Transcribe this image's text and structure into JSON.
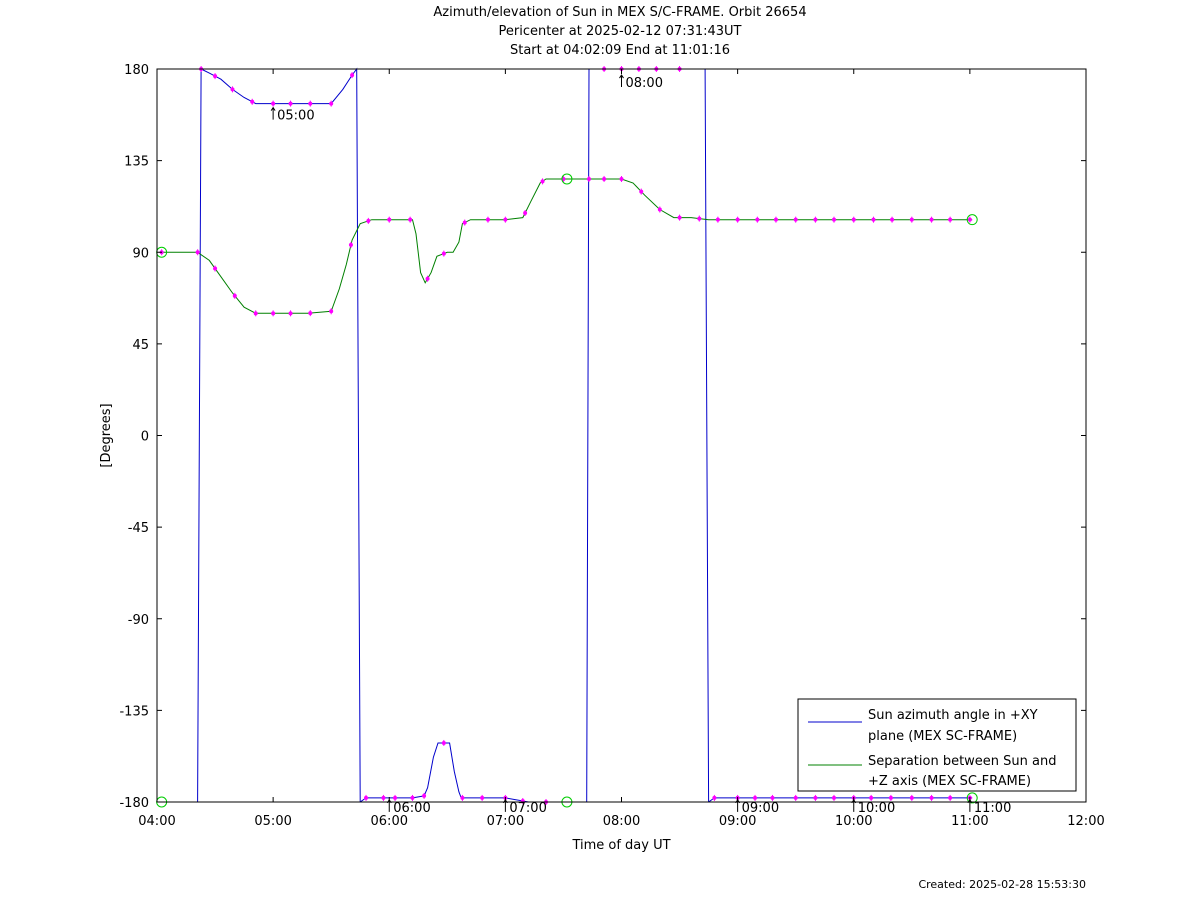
{
  "chart_data": {
    "type": "line",
    "title": "Azimuth/elevation of Sun in MEX S/C-FRAME.  Orbit 26654",
    "subtitle_lines": [
      "Pericenter at 2025-02-12 07:31:43UT",
      "Start at 04:02:09 End at 11:01:16"
    ],
    "xlabel": "Time of day UT",
    "ylabel": "[Degrees]",
    "xlim_hours": [
      4,
      12
    ],
    "ylim": [
      -180,
      180
    ],
    "x_ticks": [
      "04:00",
      "05:00",
      "06:00",
      "07:00",
      "08:00",
      "09:00",
      "10:00",
      "11:00",
      "12:00"
    ],
    "y_ticks": [
      "180",
      "135",
      "90",
      "45",
      "0",
      "-45",
      "-90",
      "-135",
      "-180"
    ],
    "grid": false,
    "legend_position": "bottom-right",
    "colors": {
      "azimuth": "#0000cc",
      "separation": "#008000",
      "marker": "#ff00ff",
      "circle": "#00cc00"
    },
    "annotations": [
      {
        "label": "05:00",
        "x": 5.0,
        "y": 163
      },
      {
        "label": "06:00",
        "x": 6.0,
        "y": -177
      },
      {
        "label": "07:00",
        "x": 7.0,
        "y": -177
      },
      {
        "label": "08:00",
        "x": 8.0,
        "y": 179
      },
      {
        "label": "09:00",
        "x": 9.0,
        "y": -177
      },
      {
        "label": "10:00",
        "x": 10.0,
        "y": -177
      },
      {
        "label": "11:00",
        "x": 11.0,
        "y": -177
      }
    ],
    "series": [
      {
        "name": "Sun azimuth angle in +XY plane (MEX SC-FRAME)",
        "segments": [
          [
            [
              4.04,
              -180
            ],
            [
              4.35,
              -180
            ],
            [
              4.38,
              180
            ]
          ],
          [
            [
              4.38,
              180
            ],
            [
              4.45,
              178
            ],
            [
              4.55,
              175
            ],
            [
              4.65,
              170
            ],
            [
              4.75,
              166
            ],
            [
              4.85,
              163
            ],
            [
              5.0,
              163
            ],
            [
              5.3,
              163
            ],
            [
              5.5,
              163
            ],
            [
              5.6,
              170
            ],
            [
              5.68,
              177
            ],
            [
              5.72,
              180
            ],
            [
              5.75,
              -180
            ]
          ],
          [
            [
              5.75,
              -180
            ],
            [
              5.8,
              -178
            ],
            [
              5.9,
              -178
            ],
            [
              6.0,
              -178
            ],
            [
              6.1,
              -178
            ],
            [
              6.2,
              -178
            ],
            [
              6.3,
              -177
            ],
            [
              6.33,
              -173
            ],
            [
              6.38,
              -158
            ],
            [
              6.42,
              -151
            ],
            [
              6.52,
              -151
            ],
            [
              6.56,
              -165
            ],
            [
              6.6,
              -175
            ],
            [
              6.62,
              -178
            ],
            [
              6.7,
              -178
            ],
            [
              6.85,
              -178
            ],
            [
              7.0,
              -178
            ],
            [
              7.2,
              -180
            ],
            [
              7.5,
              -180
            ],
            [
              7.7,
              -180
            ],
            [
              7.72,
              180
            ]
          ],
          [
            [
              7.72,
              180
            ],
            [
              7.85,
              180
            ],
            [
              8.0,
              180
            ],
            [
              8.15,
              180
            ],
            [
              8.3,
              180
            ],
            [
              8.5,
              180
            ],
            [
              8.72,
              180
            ],
            [
              8.75,
              -180
            ]
          ],
          [
            [
              8.75,
              -180
            ],
            [
              8.8,
              -178
            ],
            [
              9.0,
              -178
            ],
            [
              9.5,
              -178
            ],
            [
              10.0,
              -178
            ],
            [
              10.5,
              -178
            ],
            [
              11.02,
              -178
            ]
          ]
        ],
        "markers": [
          4.38,
          4.5,
          4.65,
          4.82,
          5.0,
          5.15,
          5.32,
          5.5,
          5.68,
          5.8,
          5.95,
          6.05,
          6.2,
          6.3,
          6.47,
          6.63,
          6.8,
          7.0,
          7.15,
          7.35,
          7.85,
          8.0,
          8.15,
          8.3,
          8.5,
          8.8,
          9.0,
          9.15,
          9.3,
          9.5,
          9.67,
          9.83,
          10.0,
          10.15,
          10.32,
          10.5,
          10.67,
          10.83,
          11.0
        ]
      },
      {
        "name": "Separation between Sun and +Z axis (MEX SC-FRAME)",
        "segments": [
          [
            [
              4.04,
              90
            ],
            [
              4.35,
              90
            ],
            [
              4.45,
              86
            ],
            [
              4.55,
              78
            ],
            [
              4.65,
              70
            ],
            [
              4.75,
              63
            ],
            [
              4.85,
              60
            ],
            [
              5.0,
              60
            ],
            [
              5.3,
              60
            ],
            [
              5.5,
              61
            ],
            [
              5.57,
              72
            ],
            [
              5.63,
              84
            ],
            [
              5.68,
              96
            ],
            [
              5.75,
              104
            ],
            [
              5.85,
              106
            ],
            [
              6.0,
              106
            ],
            [
              6.2,
              106
            ],
            [
              6.23,
              99
            ],
            [
              6.27,
              80
            ],
            [
              6.31,
              75
            ],
            [
              6.36,
              80
            ],
            [
              6.41,
              88
            ],
            [
              6.5,
              90
            ],
            [
              6.55,
              90
            ],
            [
              6.6,
              95
            ],
            [
              6.63,
              104
            ],
            [
              6.7,
              106
            ],
            [
              7.0,
              106
            ],
            [
              7.15,
              107
            ],
            [
              7.22,
              115
            ],
            [
              7.3,
              124
            ],
            [
              7.35,
              126
            ],
            [
              7.5,
              126
            ],
            [
              8.0,
              126
            ],
            [
              8.1,
              124
            ],
            [
              8.2,
              118
            ],
            [
              8.33,
              111
            ],
            [
              8.45,
              107
            ],
            [
              8.6,
              107
            ],
            [
              8.75,
              106
            ],
            [
              9.0,
              106
            ],
            [
              10.0,
              106
            ],
            [
              11.02,
              106
            ]
          ]
        ],
        "markers": [
          4.04,
          4.35,
          4.5,
          4.67,
          4.85,
          5.0,
          5.15,
          5.32,
          5.5,
          5.67,
          5.82,
          6.0,
          6.18,
          6.33,
          6.47,
          6.65,
          6.85,
          7.0,
          7.17,
          7.32,
          7.5,
          7.72,
          7.85,
          8.0,
          8.17,
          8.33,
          8.5,
          8.67,
          8.83,
          9.0,
          9.17,
          9.33,
          9.5,
          9.67,
          9.83,
          10.0,
          10.17,
          10.33,
          10.5,
          10.67,
          10.83,
          11.0
        ]
      }
    ],
    "circle_points": [
      {
        "x": 4.04,
        "y": 90
      },
      {
        "x": 4.04,
        "y": -180
      },
      {
        "x": 7.53,
        "y": 126
      },
      {
        "x": 7.53,
        "y": -180
      },
      {
        "x": 11.02,
        "y": 106
      },
      {
        "x": 11.02,
        "y": -178
      }
    ]
  },
  "legend": {
    "entry1_line1": "Sun azimuth angle in +XY",
    "entry1_line2": "plane (MEX SC-FRAME)",
    "entry2_line1": "Separation between Sun and",
    "entry2_line2": "+Z axis (MEX SC-FRAME)"
  },
  "footer": {
    "created": "Created: 2025-02-28 15:53:30"
  }
}
